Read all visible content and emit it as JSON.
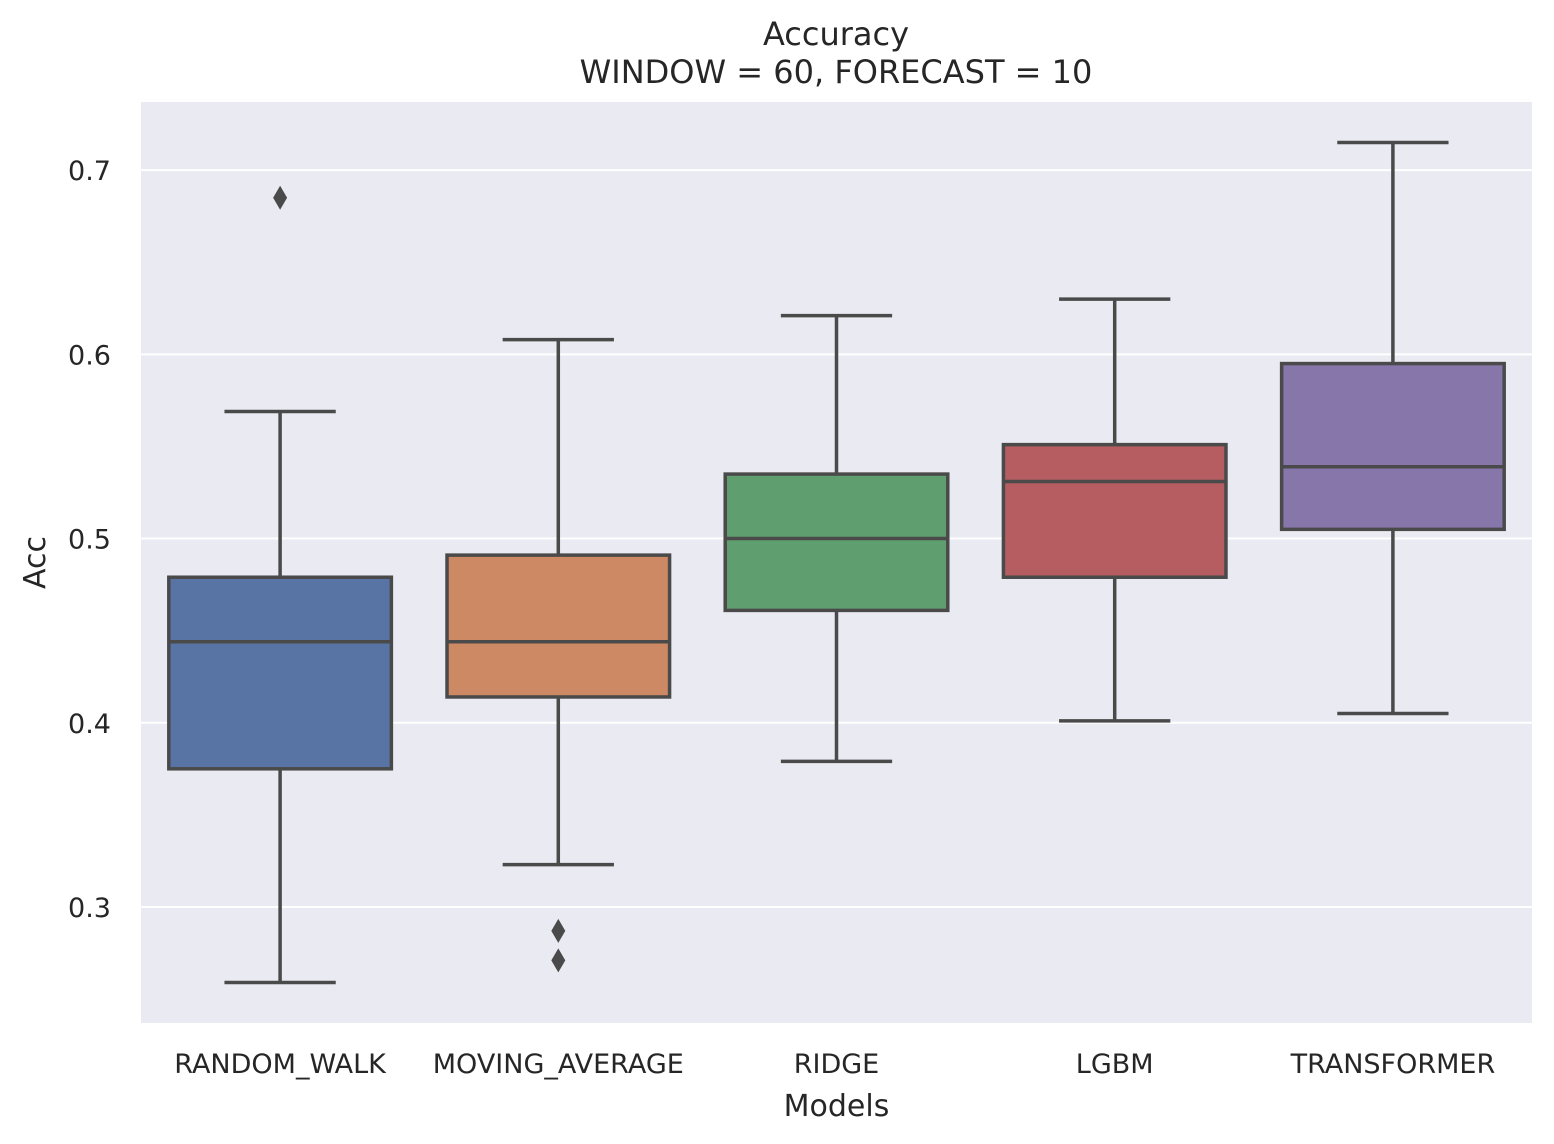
{
  "chart_data": {
    "type": "box",
    "title": "Accuracy",
    "subtitle": "WINDOW = 60, FORECAST = 10",
    "xlabel": "Models",
    "ylabel": "Acc",
    "ylim": [
      0.237,
      0.737
    ],
    "yticks": [
      0.3,
      0.4,
      0.5,
      0.6,
      0.7
    ],
    "ytick_labels": [
      "0.3",
      "0.4",
      "0.5",
      "0.6",
      "0.7"
    ],
    "grid": true,
    "background": "#eaeaf2",
    "categories": [
      "RANDOM_WALK",
      "MOVING_AVERAGE",
      "RIDGE",
      "LGBM",
      "TRANSFORMER"
    ],
    "boxes": [
      {
        "name": "RANDOM_WALK",
        "color": "#5874a4",
        "whisker_low": 0.259,
        "q1": 0.375,
        "median": 0.444,
        "q3": 0.479,
        "whisker_high": 0.569,
        "outliers": [
          0.685
        ]
      },
      {
        "name": "MOVING_AVERAGE",
        "color": "#cd8963",
        "whisker_low": 0.323,
        "q1": 0.414,
        "median": 0.444,
        "q3": 0.491,
        "whisker_high": 0.608,
        "outliers": [
          0.287,
          0.271
        ]
      },
      {
        "name": "RIDGE",
        "color": "#5f9e6e",
        "whisker_low": 0.379,
        "q1": 0.461,
        "median": 0.5,
        "q3": 0.535,
        "whisker_high": 0.621,
        "outliers": []
      },
      {
        "name": "LGBM",
        "color": "#b55d60",
        "whisker_low": 0.401,
        "q1": 0.479,
        "median": 0.531,
        "q3": 0.551,
        "whisker_high": 0.63,
        "outliers": []
      },
      {
        "name": "TRANSFORMER",
        "color": "#8776aa",
        "whisker_low": 0.405,
        "q1": 0.505,
        "median": 0.539,
        "q3": 0.595,
        "whisker_high": 0.715,
        "outliers": []
      }
    ]
  }
}
